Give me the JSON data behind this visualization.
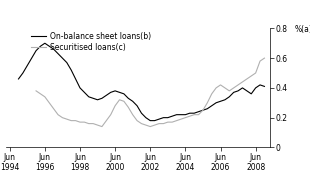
{
  "ylabel": "%(a)",
  "ylim": [
    0,
    0.8
  ],
  "yticks": [
    0,
    0.2,
    0.4,
    0.6,
    0.8
  ],
  "ytick_labels": [
    "0",
    "0.2",
    "0.4",
    "0.6",
    "0.8"
  ],
  "xtick_years": [
    1994,
    1996,
    1998,
    2000,
    2002,
    2004,
    2006,
    2008
  ],
  "legend": [
    "On-balance sheet loans(b)",
    "Securitised loans(c)"
  ],
  "line_colors": [
    "#000000",
    "#b0b0b0"
  ],
  "background_color": "#ffffff",
  "xlim": [
    1993.8,
    2008.8
  ],
  "on_balance_x": [
    1994.5,
    1994.75,
    1995.0,
    1995.25,
    1995.5,
    1995.75,
    1996.0,
    1996.25,
    1996.5,
    1996.75,
    1997.0,
    1997.25,
    1997.5,
    1997.75,
    1998.0,
    1998.25,
    1998.5,
    1998.75,
    1999.0,
    1999.25,
    1999.5,
    1999.75,
    2000.0,
    2000.25,
    2000.5,
    2000.75,
    2001.0,
    2001.25,
    2001.5,
    2001.75,
    2002.0,
    2002.25,
    2002.5,
    2002.75,
    2003.0,
    2003.25,
    2003.5,
    2003.75,
    2004.0,
    2004.25,
    2004.5,
    2004.75,
    2005.0,
    2005.25,
    2005.5,
    2005.75,
    2006.0,
    2006.25,
    2006.5,
    2006.75,
    2007.0,
    2007.25,
    2007.5,
    2007.75,
    2008.0,
    2008.25,
    2008.5
  ],
  "on_balance_y": [
    0.46,
    0.5,
    0.55,
    0.6,
    0.65,
    0.68,
    0.7,
    0.68,
    0.66,
    0.63,
    0.6,
    0.57,
    0.52,
    0.46,
    0.4,
    0.37,
    0.34,
    0.33,
    0.32,
    0.33,
    0.35,
    0.37,
    0.38,
    0.37,
    0.36,
    0.33,
    0.31,
    0.28,
    0.23,
    0.2,
    0.18,
    0.18,
    0.19,
    0.2,
    0.2,
    0.21,
    0.22,
    0.22,
    0.22,
    0.23,
    0.23,
    0.24,
    0.25,
    0.26,
    0.28,
    0.3,
    0.31,
    0.32,
    0.34,
    0.37,
    0.38,
    0.4,
    0.38,
    0.36,
    0.4,
    0.42,
    0.41
  ],
  "securitised_x": [
    1995.5,
    1995.75,
    1996.0,
    1996.25,
    1996.5,
    1996.75,
    1997.0,
    1997.25,
    1997.5,
    1997.75,
    1998.0,
    1998.25,
    1998.5,
    1998.75,
    1999.0,
    1999.25,
    1999.5,
    1999.75,
    2000.0,
    2000.25,
    2000.5,
    2000.75,
    2001.0,
    2001.25,
    2001.5,
    2001.75,
    2002.0,
    2002.25,
    2002.5,
    2002.75,
    2003.0,
    2003.25,
    2003.5,
    2003.75,
    2004.0,
    2004.25,
    2004.5,
    2004.75,
    2005.0,
    2005.25,
    2005.5,
    2005.75,
    2006.0,
    2006.25,
    2006.5,
    2006.75,
    2007.0,
    2007.25,
    2007.5,
    2007.75,
    2008.0,
    2008.25,
    2008.5
  ],
  "securitised_y": [
    0.38,
    0.36,
    0.34,
    0.3,
    0.26,
    0.22,
    0.2,
    0.19,
    0.18,
    0.18,
    0.17,
    0.17,
    0.16,
    0.16,
    0.15,
    0.14,
    0.18,
    0.22,
    0.28,
    0.32,
    0.31,
    0.27,
    0.22,
    0.18,
    0.16,
    0.15,
    0.14,
    0.15,
    0.16,
    0.16,
    0.17,
    0.17,
    0.18,
    0.19,
    0.2,
    0.21,
    0.22,
    0.22,
    0.25,
    0.3,
    0.36,
    0.4,
    0.42,
    0.4,
    0.38,
    0.4,
    0.42,
    0.44,
    0.46,
    0.48,
    0.5,
    0.58,
    0.6
  ]
}
